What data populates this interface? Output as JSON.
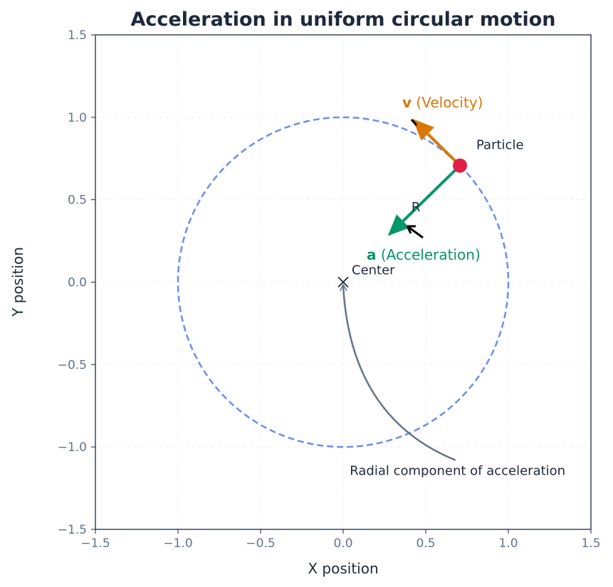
{
  "chart_data": {
    "type": "line",
    "title": "Acceleration in uniform circular motion",
    "xlabel": "X position",
    "ylabel": "Y position",
    "xlim": [
      -1.5,
      1.5
    ],
    "ylim": [
      -1.5,
      1.5
    ],
    "xticks": [
      -1.5,
      -1.0,
      -0.5,
      0.0,
      0.5,
      1.0,
      1.5
    ],
    "yticks": [
      -1.5,
      -1.0,
      -0.5,
      0.0,
      0.5,
      1.0,
      1.5
    ],
    "xtick_labels": [
      "−1.5",
      "−1.0",
      "−0.5",
      "0.0",
      "0.5",
      "1.0",
      "1.5"
    ],
    "ytick_labels": [
      "−1.5",
      "−1.0",
      "−0.5",
      "0.0",
      "0.5",
      "1.0",
      "1.5"
    ],
    "grid": true,
    "circle": {
      "center": [
        0,
        0
      ],
      "radius": 1,
      "color": "#6a8ff0",
      "style": "dashed"
    },
    "particle": {
      "x": 0.707,
      "y": 0.707,
      "label": "Particle",
      "color": "#e11d48"
    },
    "center": {
      "x": 0,
      "y": 0,
      "label": "Center"
    },
    "velocity": {
      "from": [
        0.707,
        0.707
      ],
      "to": [
        0.42,
        0.99
      ],
      "bold": "v",
      "label": " (Velocity)",
      "color": "#d97706"
    },
    "acceleration": {
      "from": [
        0.707,
        0.707
      ],
      "to": [
        0.27,
        0.28
      ],
      "bold": "a",
      "label": " (Acceleration)",
      "color": "#059669"
    },
    "radius_label": "R",
    "annotation": {
      "text": "Radial component of acceleration",
      "text_at": [
        0.04,
        -1.17
      ],
      "arrow_from": [
        0.68,
        -1.08
      ],
      "arrow_to": [
        0.0,
        -0.02
      ],
      "color": "#64748b"
    }
  }
}
